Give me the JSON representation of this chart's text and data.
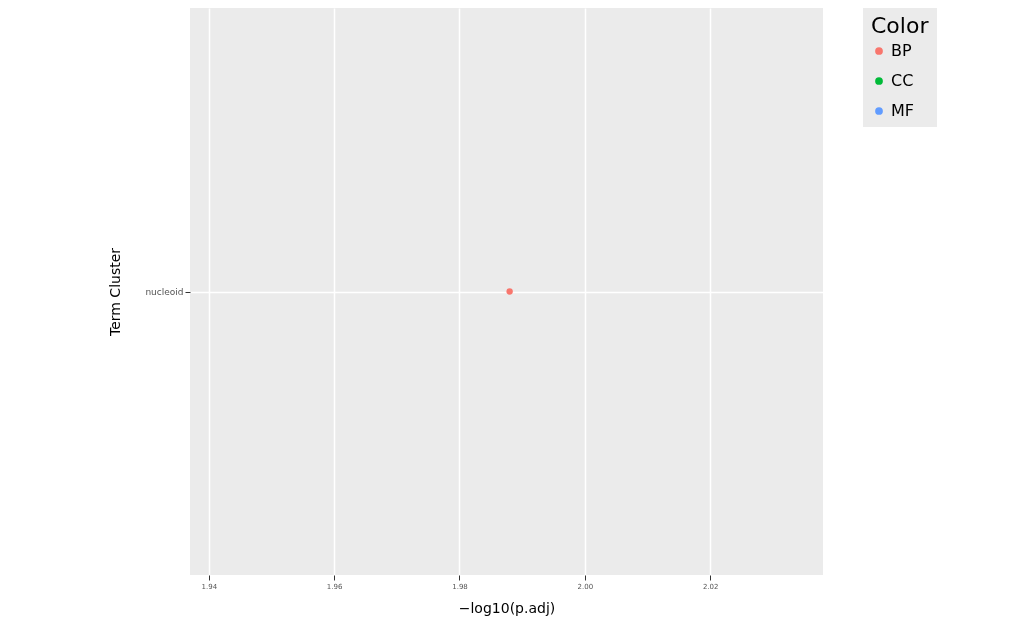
{
  "chart_data": {
    "type": "scatter",
    "orientation": "horizontal",
    "xlabel": "−log10(p.adj)",
    "ylabel": "Term Cluster",
    "legend_title": "Color",
    "categories": [
      "nucleoid"
    ],
    "series": [
      {
        "name": "BP",
        "color": "#f8766d",
        "values": [
          1.988
        ]
      },
      {
        "name": "CC",
        "color": "#00ba38",
        "values": [
          null
        ]
      },
      {
        "name": "MF",
        "color": "#619cff",
        "values": [
          null
        ]
      }
    ],
    "xlim": [
      1.937,
      2.038
    ],
    "xticks": [
      1.94,
      1.96,
      1.98,
      {
        "value": 2,
        "label": "2.00"
      },
      2.02
    ],
    "grid": true,
    "legend": "right",
    "marker": "circle"
  }
}
